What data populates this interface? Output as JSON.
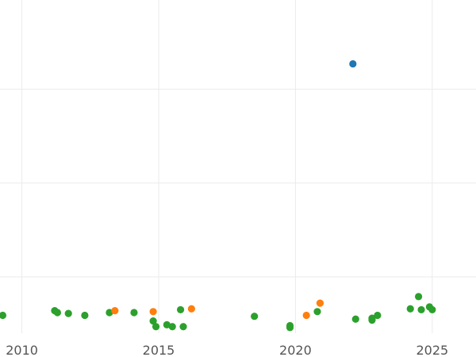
{
  "chart_data": {
    "type": "scatter",
    "title": "",
    "xlabel": "",
    "ylabel": "",
    "grid": true,
    "legend": "none",
    "xlim": [
      2009.2,
      2026.6
    ],
    "ylim": [
      -0.1,
      3.45
    ],
    "x_ticks": [
      2010,
      2015,
      2020,
      2025
    ],
    "x_tick_labels": [
      "2010",
      "2015",
      "2020",
      "2025"
    ],
    "y_ticks": [
      0.5,
      1.5,
      2.5
    ],
    "series": [
      {
        "color": "#1f77b4",
        "points": [
          {
            "x": 2022.1,
            "y": 2.77
          }
        ]
      },
      {
        "color": "#ff7f0e",
        "points": [
          {
            "x": 2013.4,
            "y": 0.14
          },
          {
            "x": 2014.8,
            "y": 0.13
          },
          {
            "x": 2016.2,
            "y": 0.16
          },
          {
            "x": 2020.4,
            "y": 0.09
          },
          {
            "x": 2020.9,
            "y": 0.22
          }
        ]
      },
      {
        "color": "#2ca02c",
        "points": [
          {
            "x": 2009.3,
            "y": 0.09
          },
          {
            "x": 2011.2,
            "y": 0.14
          },
          {
            "x": 2011.3,
            "y": 0.12
          },
          {
            "x": 2011.7,
            "y": 0.11
          },
          {
            "x": 2012.3,
            "y": 0.09
          },
          {
            "x": 2013.2,
            "y": 0.12
          },
          {
            "x": 2014.1,
            "y": 0.12
          },
          {
            "x": 2014.8,
            "y": 0.03
          },
          {
            "x": 2014.9,
            "y": -0.03
          },
          {
            "x": 2015.3,
            "y": -0.01
          },
          {
            "x": 2015.5,
            "y": -0.03
          },
          {
            "x": 2015.8,
            "y": 0.15
          },
          {
            "x": 2015.9,
            "y": -0.03
          },
          {
            "x": 2018.5,
            "y": 0.08
          },
          {
            "x": 2019.8,
            "y": -0.02
          },
          {
            "x": 2019.8,
            "y": -0.04
          },
          {
            "x": 2020.8,
            "y": 0.13
          },
          {
            "x": 2022.2,
            "y": 0.05
          },
          {
            "x": 2022.8,
            "y": 0.04
          },
          {
            "x": 2022.8,
            "y": 0.06
          },
          {
            "x": 2023.0,
            "y": 0.09
          },
          {
            "x": 2024.2,
            "y": 0.16
          },
          {
            "x": 2024.5,
            "y": 0.29
          },
          {
            "x": 2024.6,
            "y": 0.15
          },
          {
            "x": 2024.9,
            "y": 0.18
          },
          {
            "x": 2025.0,
            "y": 0.15
          }
        ]
      }
    ]
  }
}
